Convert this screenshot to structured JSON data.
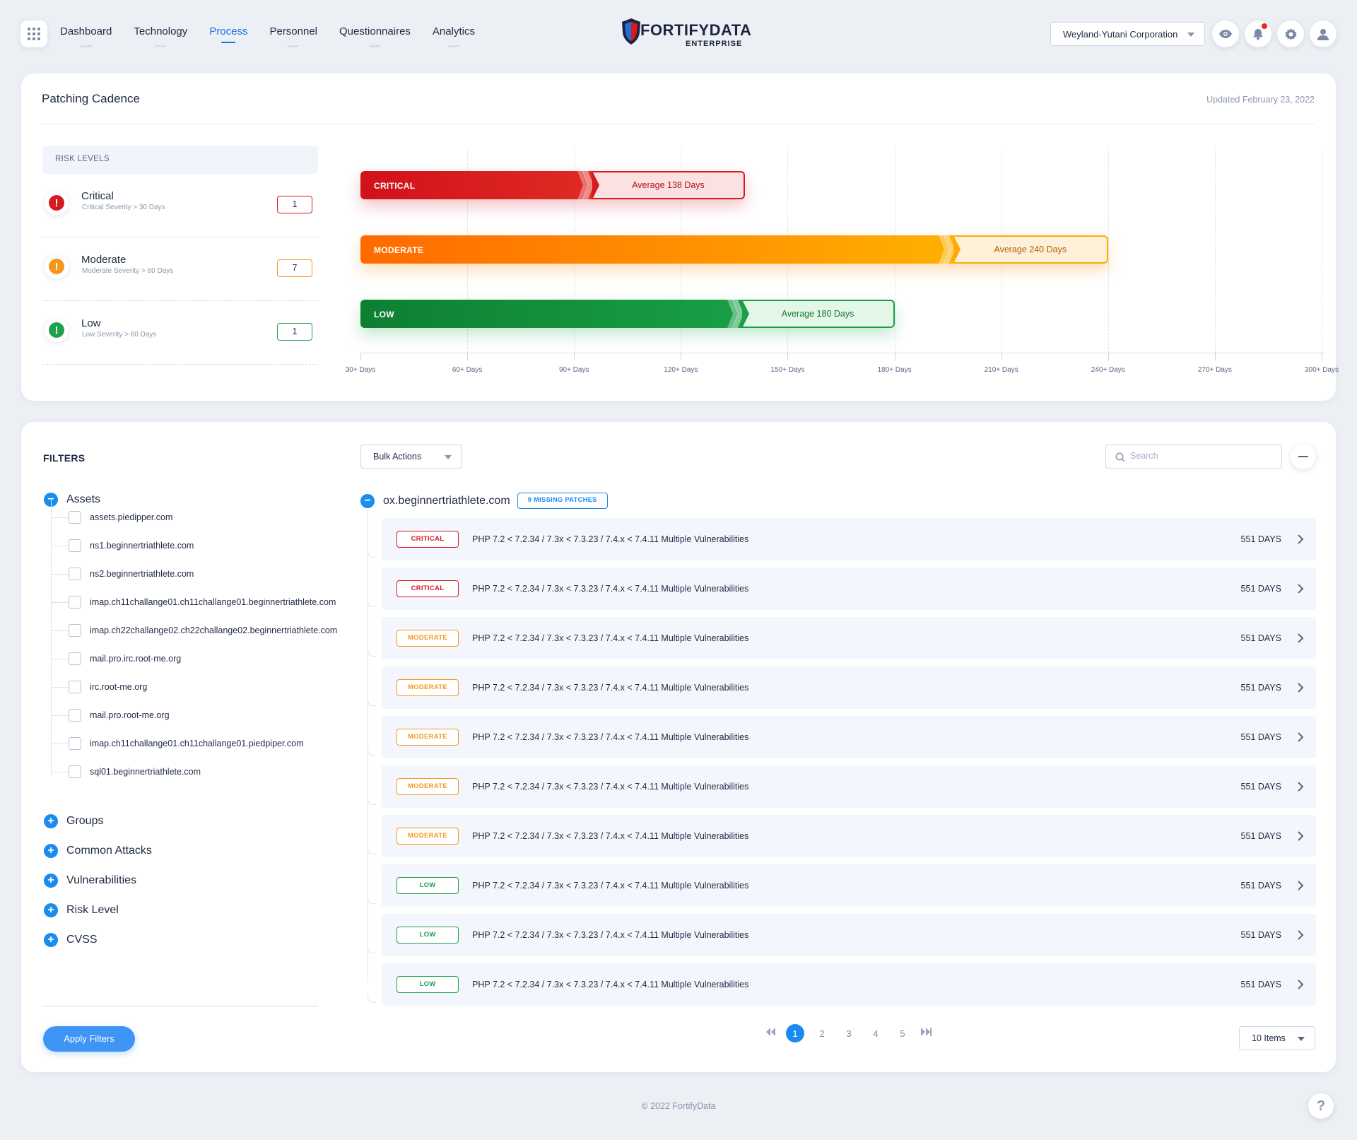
{
  "nav": {
    "items": [
      {
        "label": "Dashboard"
      },
      {
        "label": "Technology"
      },
      {
        "label": "Process"
      },
      {
        "label": "Personnel"
      },
      {
        "label": "Questionnaires"
      },
      {
        "label": "Analytics"
      }
    ],
    "active": "Process",
    "org_select": "Weyland-Yutani Corporation",
    "icons": [
      "apps-grid-icon",
      "eye-icon",
      "bell-icon",
      "gear-icon",
      "user-icon"
    ]
  },
  "logo": {
    "name": "FORTIFYDATA",
    "sub": "ENTERPRISE"
  },
  "patching": {
    "title": "Patching Cadence",
    "updated": "Updated February 23, 2022",
    "risk_levels_header": "RISK LEVELS",
    "risks": [
      {
        "name": "Critical",
        "sub": "Critical Severity > 30 Days",
        "count": "1",
        "color": "#d71920"
      },
      {
        "name": "Moderate",
        "sub": "Moderate Severity > 60 Days",
        "count": "7",
        "color": "#f7961d"
      },
      {
        "name": "Low",
        "sub": "Low Severity > 60 Days",
        "count": "1",
        "color": "#20a04a"
      }
    ]
  },
  "chart_data": {
    "type": "bar",
    "orientation": "horizontal",
    "categories": [
      "CRITICAL",
      "MODERATE",
      "LOW"
    ],
    "values": [
      138,
      240,
      180
    ],
    "value_labels": [
      "Average 138 Days",
      "Average 240 Days",
      "Average 180 Days"
    ],
    "colors": [
      "#d71920",
      "#ff7a00",
      "#138a36"
    ],
    "xlim": [
      30,
      300
    ],
    "xticks": [
      30,
      60,
      90,
      120,
      150,
      180,
      210,
      240,
      270,
      300
    ],
    "xtick_labels": [
      "30+ Days",
      "60+ Days",
      "90+ Days",
      "120+ Days",
      "150+ Days",
      "180+ Days",
      "210+ Days",
      "240+ Days",
      "270+ Days",
      "300+ Days"
    ],
    "grid": true
  },
  "filters": {
    "title": "FILTERS",
    "assets_label": "Assets",
    "assets": [
      "assets.piedipper.com",
      "ns1.beginnertriathlete.com",
      "ns2.beginnertriathlete.com",
      "imap.ch11challange01.ch11challange01.beginnertriathlete.com",
      "imap.ch22challange02.ch22challange02.beginnertriathlete.com",
      "mail.pro.irc.root-me.org",
      "irc.root-me.org",
      "mail.pro.root-me.org",
      "imap.ch11challange01.ch11challange01.piedpiper.com",
      "sql01.beginnertriathlete.com"
    ],
    "groups": [
      "Groups",
      "Common Attacks",
      "Vulnerabilities",
      "Risk Level",
      "CVSS"
    ],
    "apply": "Apply Filters"
  },
  "patches": {
    "bulk_actions": "Bulk Actions",
    "search_placeholder": "Search",
    "host": "ox.beginnertriathlete.com",
    "missing": "9 MISSING PATCHES",
    "rows": [
      {
        "sev": "CRITICAL",
        "color": "#d71920",
        "title": "PHP 7.2 < 7.2.34 / 7.3x < 7.3.23 / 7.4.x < 7.4.11 Multiple Vulnerabilities",
        "days": "551 DAYS"
      },
      {
        "sev": "CRITICAL",
        "color": "#d71920",
        "title": "PHP 7.2 < 7.2.34 / 7.3x < 7.3.23 / 7.4.x < 7.4.11 Multiple Vulnerabilities",
        "days": "551 DAYS"
      },
      {
        "sev": "MODERATE",
        "color": "#f29b1d",
        "title": "PHP 7.2 < 7.2.34 / 7.3x < 7.3.23 / 7.4.x < 7.4.11 Multiple Vulnerabilities",
        "days": "551 DAYS"
      },
      {
        "sev": "MODERATE",
        "color": "#f29b1d",
        "title": "PHP 7.2 < 7.2.34 / 7.3x < 7.3.23 / 7.4.x < 7.4.11 Multiple Vulnerabilities",
        "days": "551 DAYS"
      },
      {
        "sev": "MODERATE",
        "color": "#f29b1d",
        "title": "PHP 7.2 < 7.2.34 / 7.3x < 7.3.23 / 7.4.x < 7.4.11 Multiple Vulnerabilities",
        "days": "551 DAYS"
      },
      {
        "sev": "MODERATE",
        "color": "#f29b1d",
        "title": "PHP 7.2 < 7.2.34 / 7.3x < 7.3.23 / 7.4.x < 7.4.11 Multiple Vulnerabilities",
        "days": "551 DAYS"
      },
      {
        "sev": "MODERATE",
        "color": "#f29b1d",
        "title": "PHP 7.2 < 7.2.34 / 7.3x < 7.3.23 / 7.4.x < 7.4.11 Multiple Vulnerabilities",
        "days": "551 DAYS"
      },
      {
        "sev": "LOW",
        "color": "#20a04a",
        "title": "PHP 7.2 < 7.2.34 / 7.3x < 7.3.23 / 7.4.x < 7.4.11 Multiple Vulnerabilities",
        "days": "551 DAYS"
      },
      {
        "sev": "LOW",
        "color": "#20a04a",
        "title": "PHP 7.2 < 7.2.34 / 7.3x < 7.3.23 / 7.4.x < 7.4.11 Multiple Vulnerabilities",
        "days": "551 DAYS"
      },
      {
        "sev": "LOW",
        "color": "#20a04a",
        "title": "PHP 7.2 < 7.2.34 / 7.3x < 7.3.23 / 7.4.x < 7.4.11 Multiple Vulnerabilities",
        "days": "551 DAYS"
      }
    ],
    "pages": [
      "1",
      "2",
      "3",
      "4",
      "5"
    ],
    "current_page": "1",
    "items_per_page": "10 Items"
  },
  "footer": "© 2022 FortifyData",
  "help": "?"
}
